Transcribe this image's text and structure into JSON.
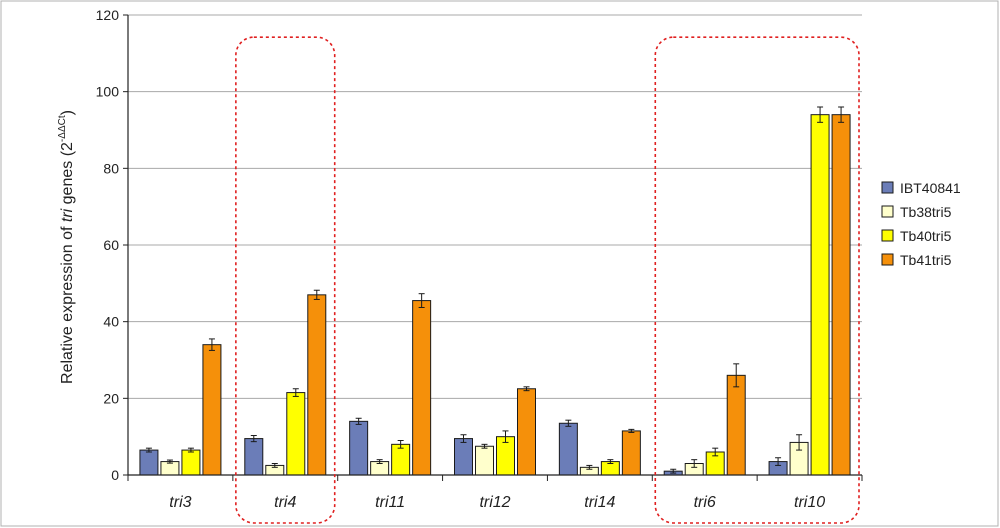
{
  "chart_data": {
    "type": "bar",
    "title": "",
    "xlabel": "",
    "ylabel": {
      "prefix": "Relative expression of ",
      "italic": "tri",
      "suffix": " genes (2",
      "superscript": "-ΔΔCt",
      "close": ")"
    },
    "ylim": [
      0,
      120
    ],
    "yticks": [
      0,
      20,
      40,
      60,
      80,
      100,
      120
    ],
    "grid": true,
    "legend_position": "right",
    "categories": [
      "tri3",
      "tri4",
      "tri11",
      "tri12",
      "tri14",
      "tri6",
      "tri10"
    ],
    "series": [
      {
        "name": "IBT40841",
        "color": "#6b7db8",
        "values": [
          6.5,
          9.5,
          14,
          9.5,
          13.5,
          1,
          3.5
        ],
        "errors": [
          0.5,
          0.8,
          0.8,
          1,
          0.8,
          0.5,
          1
        ]
      },
      {
        "name": "Tb38tri5",
        "color": "#ffffcc",
        "values": [
          3.5,
          2.5,
          3.5,
          7.5,
          2,
          3,
          8.5
        ],
        "errors": [
          0.4,
          0.5,
          0.5,
          0.5,
          0.5,
          1,
          2
        ]
      },
      {
        "name": "Tb40tri5",
        "color": "#ffff00",
        "values": [
          6.5,
          21.5,
          8,
          10,
          3.5,
          6,
          94
        ],
        "errors": [
          0.5,
          1,
          1,
          1.5,
          0.5,
          1,
          2
        ]
      },
      {
        "name": "Tb41tri5",
        "color": "#f5900a",
        "values": [
          34,
          47,
          45.5,
          22.5,
          11.5,
          26,
          94
        ],
        "errors": [
          1.5,
          1.2,
          1.8,
          0.5,
          0.4,
          3,
          2
        ]
      }
    ],
    "highlight_groups": [
      [
        "tri4"
      ],
      [
        "tri6",
        "tri10"
      ]
    ]
  }
}
